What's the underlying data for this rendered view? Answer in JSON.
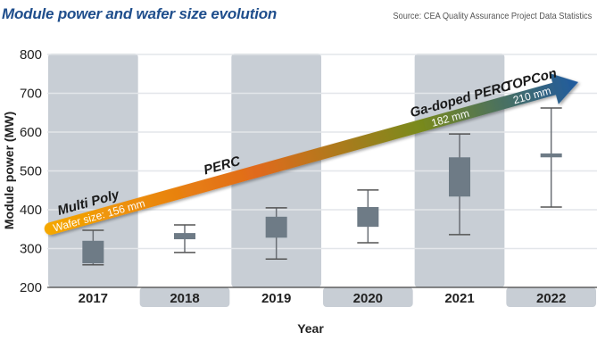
{
  "header": {
    "title": "Module power and wafer size evolution",
    "source": "Source: CEA Quality Assurance Project Data Statistics"
  },
  "chart_data": {
    "type": "box",
    "title": "Module power and wafer size evolution",
    "xlabel": "Year",
    "ylabel": "Module power (MW)",
    "ylim": [
      200,
      800
    ],
    "yticks": [
      200,
      300,
      400,
      500,
      600,
      700,
      800
    ],
    "ytick_labels": [
      "200",
      "300",
      "400",
      "500",
      "600",
      "700",
      "800"
    ],
    "categories": [
      "2017",
      "2018",
      "2019",
      "2020",
      "2021",
      "2022"
    ],
    "grid": true,
    "boxes": [
      {
        "year": "2017",
        "whisker_low": 258,
        "q1": 262,
        "q3": 320,
        "whisker_high": 347
      },
      {
        "year": "2018",
        "whisker_low": 290,
        "q1": 324,
        "q3": 340,
        "whisker_high": 361
      },
      {
        "year": "2019",
        "whisker_low": 273,
        "q1": 328,
        "q3": 382,
        "whisker_high": 405
      },
      {
        "year": "2020",
        "whisker_low": 315,
        "q1": 356,
        "q3": 407,
        "whisker_high": 451
      },
      {
        "year": "2021",
        "whisker_low": 336,
        "q1": 434,
        "q3": 535,
        "whisker_high": 595
      },
      {
        "year": "2022",
        "whisker_low": 407,
        "q1": 535,
        "q3": 545,
        "whisker_high": 662
      }
    ],
    "annotations": {
      "arrow": {
        "description": "Gradient arrow showing technology and wafer size progression",
        "colors": [
          "#f5a800",
          "#e06a1b",
          "#7a8a1a",
          "#1f5aa0"
        ],
        "technologies": [
          {
            "label": "Multi Poly",
            "wafer": "Wafer size: 156 mm"
          },
          {
            "label": "PERC",
            "wafer": ""
          },
          {
            "label": "Ga-doped PERC",
            "wafer": "182 mm"
          },
          {
            "label": "TOPCon",
            "wafer": "210 mm"
          }
        ]
      }
    },
    "colors": {
      "box": "#6e7b86",
      "whisker": "#555555",
      "band_shaded": "#c8ced5",
      "band_plain": "#ffffff",
      "grid": "#e3e6ea",
      "title": "#1f4e8c"
    }
  }
}
